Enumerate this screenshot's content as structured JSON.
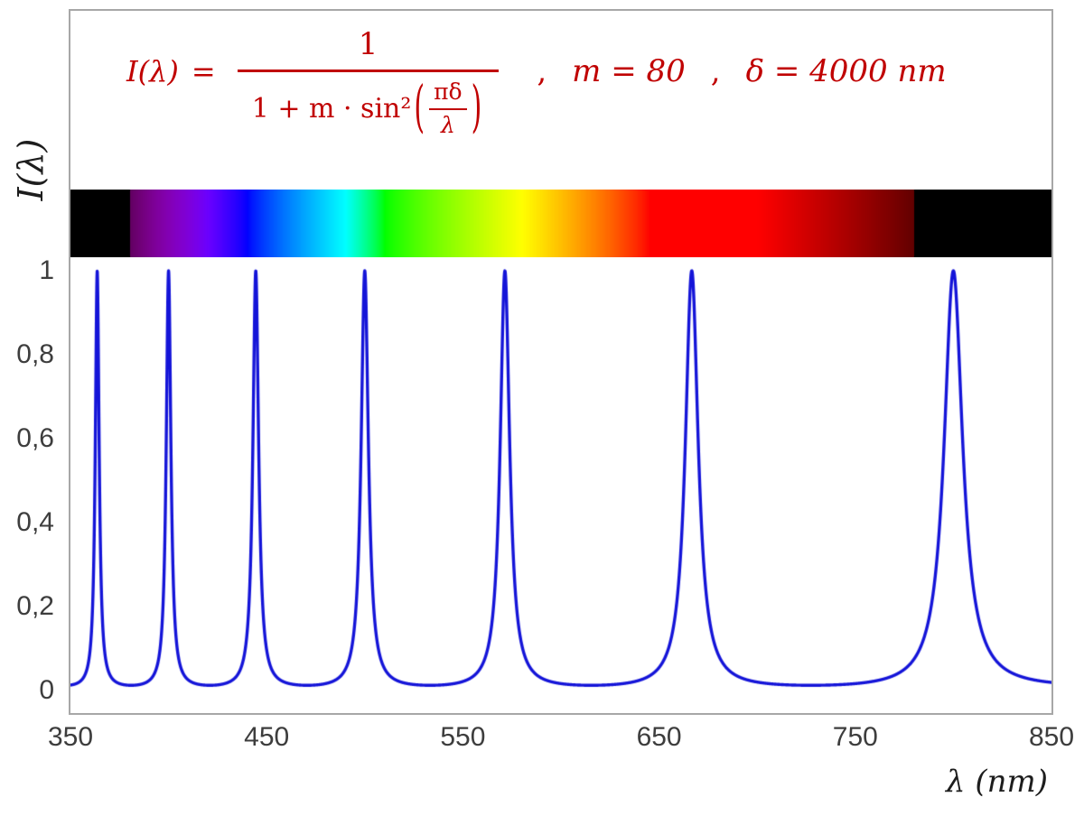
{
  "figure": {
    "ylabel": "I(λ)",
    "xlabel": "λ  (nm)",
    "frame_color": "#A7A7A7",
    "tick_color": "#3D3D3D"
  },
  "formula": {
    "lhs": "I(λ)",
    "equals": "=",
    "numerator": "1",
    "denom_prefix": "1 + m · sin²",
    "paren_open": "(",
    "inner_numerator": "πδ",
    "inner_denominator": "λ",
    "paren_close": ")",
    "comma1": ",",
    "param_m": "m = 80",
    "comma2": ",",
    "param_delta": "δ = 4000 nm",
    "color": "#C00000"
  },
  "chart_data": {
    "type": "line",
    "title": "I(λ) = 1 / (1 + m·sin²(πδ/λ)) ,  m = 80 ,  δ = 4000 nm",
    "xlabel": "λ (nm)",
    "ylabel": "I(λ)",
    "xlim": [
      350,
      850
    ],
    "ylim": [
      0,
      1
    ],
    "x_ticks": [
      350,
      450,
      550,
      650,
      750,
      850
    ],
    "x_tick_labels": [
      "350",
      "450",
      "550",
      "650",
      "750",
      "850"
    ],
    "y_ticks": [
      0,
      0.2,
      0.4,
      0.6,
      0.8,
      1
    ],
    "y_tick_labels": [
      "0",
      "0,2",
      "0,4",
      "0,6",
      "0,8",
      "1"
    ],
    "grid": false,
    "legend": false,
    "line_color": "#1414D8",
    "function": {
      "name": "airy-transmission",
      "expression": "I(lambda) = 1 / (1 + m * sin(pi*delta/lambda)^2)",
      "m": 80,
      "delta_nm": 4000,
      "sample_step_nm": 0.1
    },
    "peaks_nm": [
      363.64,
      400.0,
      444.44,
      500.0,
      571.43,
      666.67,
      800.0
    ],
    "peak_value": 1.0,
    "baseline_min_value": 0.0123,
    "spectrum_bar": {
      "range_nm": [
        350,
        850
      ],
      "visible_nm": [
        380,
        780
      ],
      "edge_color": "#000000"
    }
  }
}
